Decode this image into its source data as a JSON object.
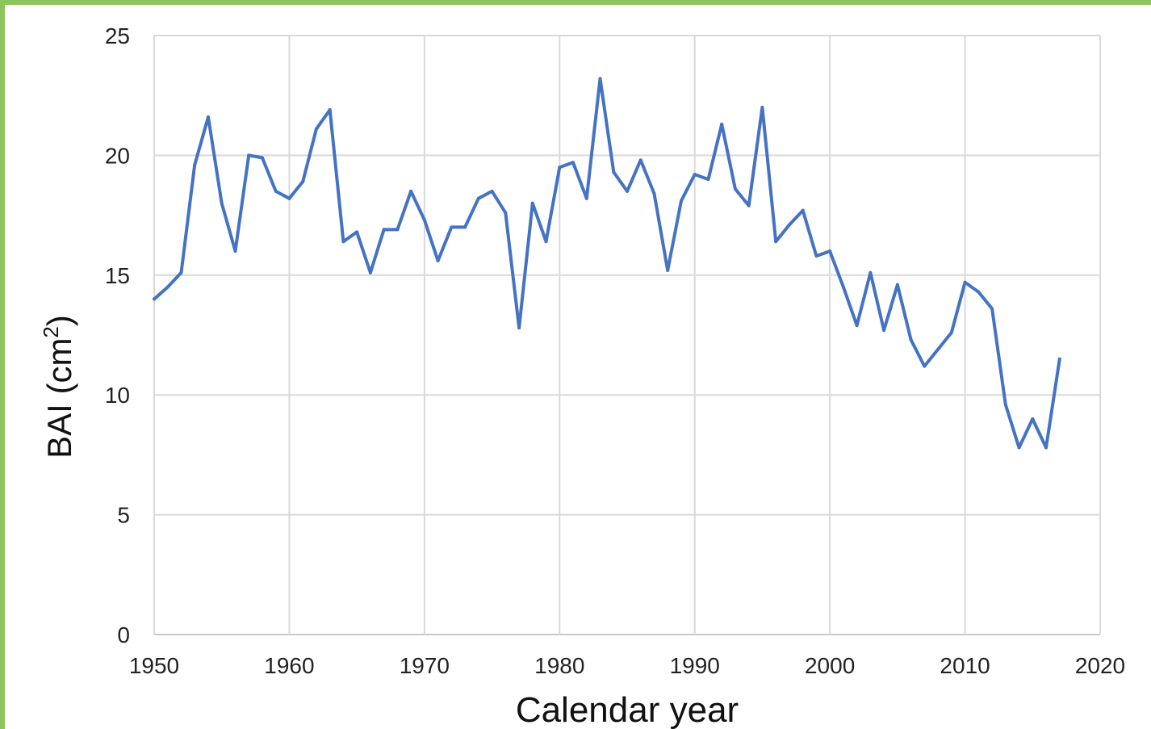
{
  "chart_data": {
    "type": "line",
    "title": "",
    "xlabel": "Calendar year",
    "ylabel": "BAI (cm",
    "ylabel_sup": "2",
    "ylabel_close": ")",
    "xlim": [
      1950,
      2020
    ],
    "ylim": [
      0,
      25
    ],
    "x_ticks": [
      "1950",
      "1960",
      "1970",
      "1980",
      "1990",
      "2000",
      "2010",
      "2020"
    ],
    "y_ticks": [
      "0",
      "5",
      "10",
      "15",
      "20",
      "25"
    ],
    "grid": true,
    "legend": "none",
    "series": [
      {
        "color": "#4472c4",
        "x": [
          1950,
          1951,
          1952,
          1953,
          1954,
          1955,
          1956,
          1957,
          1958,
          1959,
          1960,
          1961,
          1962,
          1963,
          1964,
          1965,
          1966,
          1967,
          1968,
          1969,
          1970,
          1971,
          1972,
          1973,
          1974,
          1975,
          1976,
          1977,
          1978,
          1979,
          1980,
          1981,
          1982,
          1983,
          1984,
          1985,
          1986,
          1987,
          1988,
          1989,
          1990,
          1991,
          1992,
          1993,
          1994,
          1995,
          1996,
          1997,
          1998,
          1999,
          2000,
          2001,
          2002,
          2003,
          2004,
          2005,
          2006,
          2007,
          2008,
          2009,
          2010,
          2011,
          2012,
          2013,
          2014,
          2015,
          2016,
          2017
        ],
        "values": [
          14.0,
          14.5,
          15.1,
          19.6,
          21.6,
          18.0,
          16.0,
          20.0,
          19.9,
          18.5,
          18.2,
          18.9,
          21.1,
          21.9,
          16.4,
          16.8,
          15.1,
          16.9,
          16.9,
          18.5,
          17.3,
          15.6,
          17.0,
          17.0,
          18.2,
          18.5,
          17.6,
          12.8,
          18.0,
          16.4,
          19.5,
          19.7,
          18.2,
          23.2,
          19.3,
          18.5,
          19.8,
          18.4,
          15.2,
          18.1,
          19.2,
          19.0,
          21.3,
          18.6,
          17.9,
          22.0,
          16.4,
          17.1,
          17.7,
          15.8,
          16.0,
          14.5,
          12.9,
          15.1,
          12.7,
          14.6,
          12.3,
          11.2,
          11.9,
          12.6,
          14.7,
          14.3,
          13.6,
          9.6,
          7.8,
          9.0,
          7.8,
          11.5
        ]
      }
    ]
  }
}
